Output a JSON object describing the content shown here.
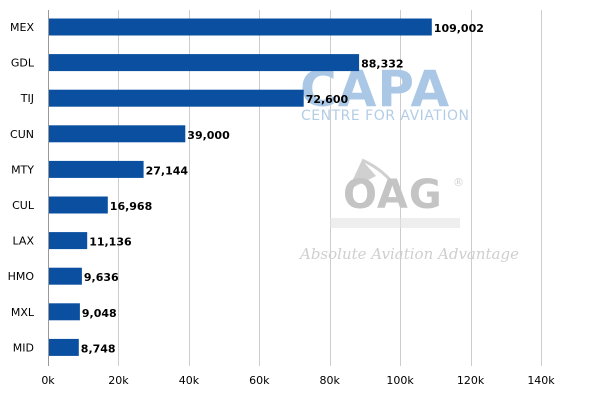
{
  "chart_data": {
    "type": "bar",
    "orientation": "horizontal",
    "categories": [
      "MEX",
      "GDL",
      "TIJ",
      "CUN",
      "MTY",
      "CUL",
      "LAX",
      "HMO",
      "MXL",
      "MID"
    ],
    "values": [
      109002,
      88332,
      72600,
      39000,
      27144,
      16968,
      11136,
      9636,
      9048,
      8748
    ],
    "value_labels": [
      "109,002",
      "88,332",
      "72,600",
      "39,000",
      "27,144",
      "16,968",
      "11,136",
      "9,636",
      "9,048",
      "8,748"
    ],
    "title": "",
    "xlabel": "",
    "ylabel": "",
    "xlim": [
      0,
      140000
    ],
    "x_ticks": [
      0,
      20000,
      40000,
      60000,
      80000,
      100000,
      120000,
      140000
    ],
    "x_tick_labels": [
      "0k",
      "20k",
      "40k",
      "60k",
      "80k",
      "100k",
      "120k",
      "140k"
    ],
    "grid": "vertical",
    "bar_color": "#0a4fa0",
    "legend": "none"
  },
  "watermarks": {
    "capa": {
      "text": "CAPA",
      "subtext": "CENTRE FOR AVIATION",
      "color": "#aac8e6"
    },
    "oag": {
      "text": "OAG",
      "registered": "®",
      "subtext": "Absolute Aviation Advantage",
      "color": "#c4c4c4"
    }
  }
}
